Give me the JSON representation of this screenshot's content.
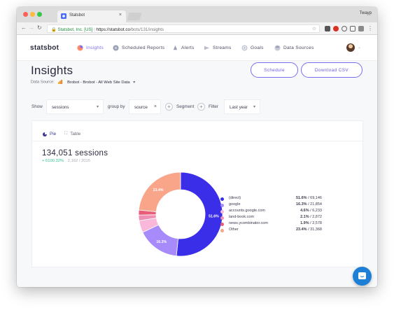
{
  "browser": {
    "tab_title": "Statsbot",
    "tab_close": "×",
    "profile_name": "Twayp",
    "secure_label": "Statsbot, Inc. [US]",
    "url_host": "https://statsbot.co",
    "url_path": "/bots/131/insights"
  },
  "nav": {
    "logo": "statsbot",
    "items": [
      {
        "label": "Insights",
        "icon": "insights-icon",
        "active": true
      },
      {
        "label": "Scheduled Reports",
        "icon": "reports-icon",
        "active": false
      },
      {
        "label": "Alerts",
        "icon": "alerts-icon",
        "active": false
      },
      {
        "label": "Streams",
        "icon": "streams-icon",
        "active": false
      },
      {
        "label": "Goals",
        "icon": "goals-icon",
        "active": false
      },
      {
        "label": "Data Sources",
        "icon": "data-sources-icon",
        "active": false
      }
    ]
  },
  "page": {
    "title": "Insights",
    "data_source_label": "Data Source:",
    "data_source_value": "Brobot - Brobot - All Web Site Data"
  },
  "actions": {
    "schedule": "Schedule",
    "download": "Download CSV"
  },
  "filters": {
    "show_label": "Show",
    "show_value": "sessions",
    "group_label": "group by",
    "group_value": "source",
    "segment_label": "Segment",
    "filter_label": "Filter",
    "period_value": "Last year"
  },
  "view_tabs": {
    "pie": "Pie",
    "table": "Table"
  },
  "summary": {
    "total": "134,051 sessions",
    "change": "+ 6100.32%",
    "compare": "2,162 / 2015"
  },
  "colors": {
    "accent": "#7c6cf0",
    "positive": "#2fbf8f"
  },
  "chart_data": {
    "type": "pie",
    "donut": true,
    "series": [
      {
        "name": "(direct)",
        "percent": 51.6,
        "pct_text": "51.6%",
        "value_text": "69,146",
        "value": 69146,
        "color": "#3a2ee8"
      },
      {
        "name": "google",
        "percent": 16.3,
        "pct_text": "16.3%",
        "value_text": "21,854",
        "value": 21854,
        "color": "#a78bfa"
      },
      {
        "name": "accounts.google.com",
        "percent": 4.6,
        "pct_text": "4.6%",
        "value_text": "6,233",
        "value": 6233,
        "color": "#f9b8d9"
      },
      {
        "name": "land-book.com",
        "percent": 2.1,
        "pct_text": "2.1%",
        "value_text": "2,872",
        "value": 2872,
        "color": "#f08fb4"
      },
      {
        "name": "news.ycombinator.com",
        "percent": 1.9,
        "pct_text": "1.9%",
        "value_text": "2,578",
        "value": 2578,
        "color": "#e85d78"
      },
      {
        "name": "Other",
        "percent": 23.4,
        "pct_text": "23.4%",
        "value_text": "31,368",
        "value": 31368,
        "color": "#f8a58a"
      }
    ],
    "slice_labels": [
      "51.6%",
      "16.3%",
      "23.4%"
    ]
  }
}
